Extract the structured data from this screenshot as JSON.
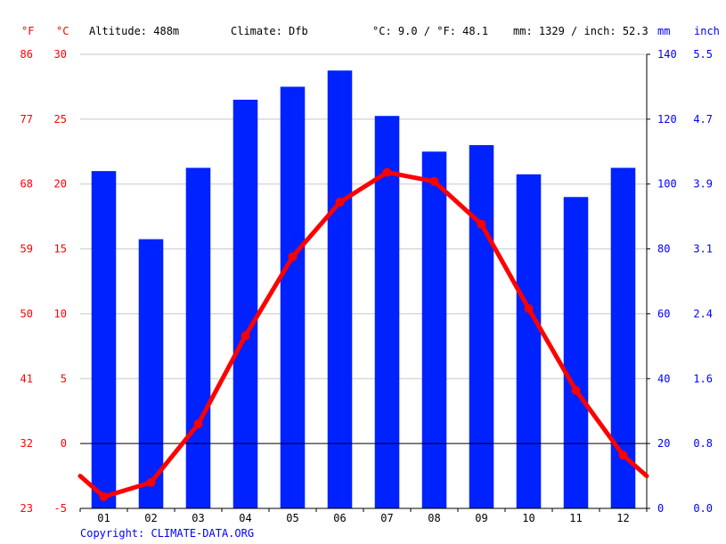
{
  "header": {
    "unit_f": "°F",
    "unit_c": "°C",
    "altitude": "Altitude: 488m",
    "climate": "Climate: Dfb",
    "temp_avg": "°C: 9.0 / °F: 48.1",
    "precip_total": "mm: 1329 / inch: 52.3",
    "unit_mm": "mm",
    "unit_inch": "inch"
  },
  "copyright": "Copyright: CLIMATE-DATA.ORG",
  "colors": {
    "temperature": "#ff0000",
    "precipitation": "#0022ff",
    "grid": "#c8c8c8",
    "zero_line": "#000000",
    "fahrenheit_text": "#ff0000",
    "inch_text": "#0000ff"
  },
  "chart_data": {
    "type": "bar",
    "categories": [
      "01",
      "02",
      "03",
      "04",
      "05",
      "06",
      "07",
      "08",
      "09",
      "10",
      "11",
      "12"
    ],
    "series": [
      {
        "type": "bar",
        "unit": "mm",
        "axis": "right",
        "values": [
          104,
          83,
          105,
          126,
          130,
          135,
          121,
          110,
          112,
          103,
          96,
          105
        ]
      },
      {
        "type": "line",
        "unit": "°C",
        "axis": "left",
        "values": [
          -4.1,
          -3.0,
          1.5,
          8.3,
          14.4,
          18.6,
          20.9,
          20.2,
          16.9,
          10.4,
          4.1,
          -0.9
        ]
      }
    ],
    "y_left": {
      "unit": "°C",
      "ylim": [
        -5,
        30
      ],
      "ticks": [
        -5,
        0,
        5,
        10,
        15,
        20,
        25,
        30
      ]
    },
    "y_left_f": {
      "unit": "°F",
      "ticks": [
        23,
        32,
        41,
        50,
        59,
        68,
        77,
        86
      ]
    },
    "y_right": {
      "unit": "mm",
      "ylim": [
        0,
        140
      ],
      "ticks": [
        0,
        20,
        40,
        60,
        80,
        100,
        120,
        140
      ]
    },
    "y_right_inch": {
      "unit": "inch",
      "ticks": [
        "0.0",
        "0.8",
        "1.6",
        "2.4",
        "3.1",
        "3.9",
        "4.7",
        "5.5"
      ]
    },
    "grid": true
  }
}
